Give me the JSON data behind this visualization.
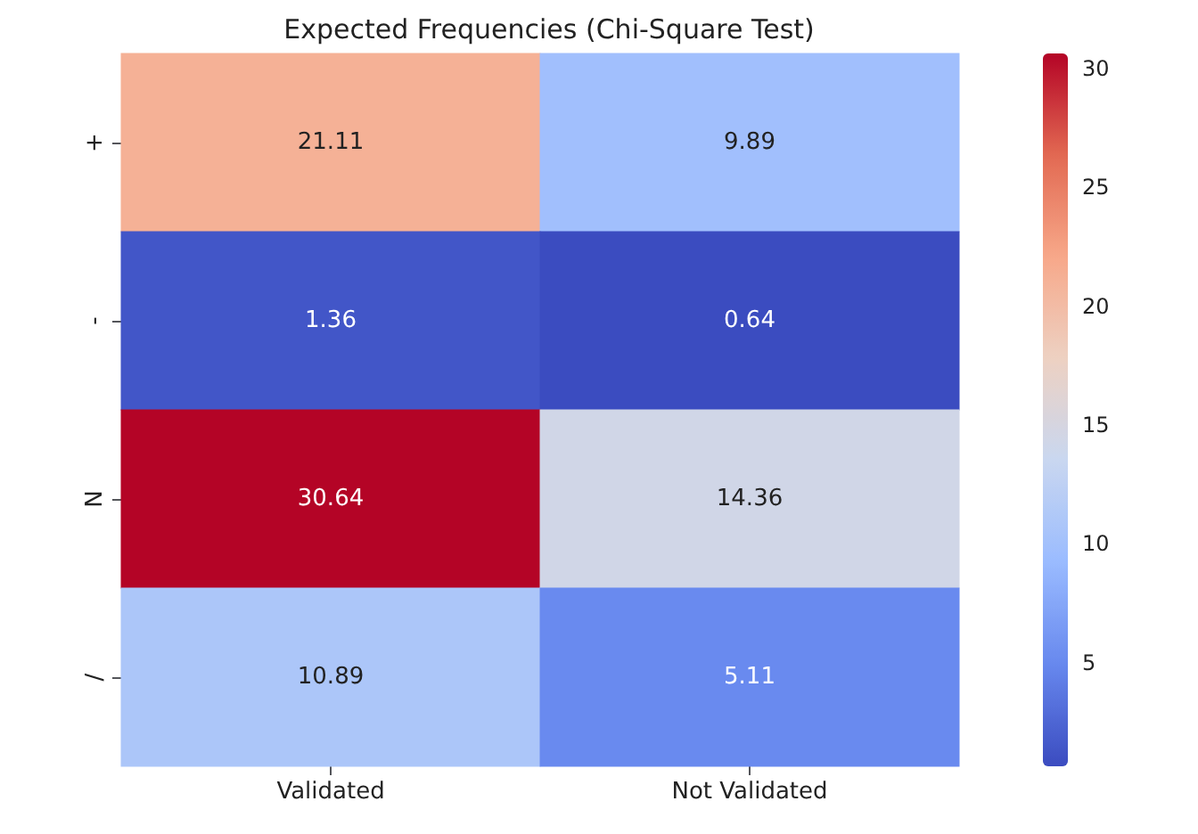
{
  "chart_data": {
    "type": "heatmap",
    "title": "Expected Frequencies (Chi-Square Test)",
    "categories": [
      "Validated",
      "Not Validated"
    ],
    "y_categories": [
      "+",
      "-",
      "N",
      "/"
    ],
    "cells": [
      [
        21.11,
        9.89
      ],
      [
        1.36,
        0.64
      ],
      [
        30.64,
        14.36
      ],
      [
        10.89,
        5.11
      ]
    ],
    "data_labels": true,
    "clim": [
      0.64,
      30.64
    ],
    "cticks": [
      5,
      10,
      15,
      20,
      25,
      30
    ]
  }
}
